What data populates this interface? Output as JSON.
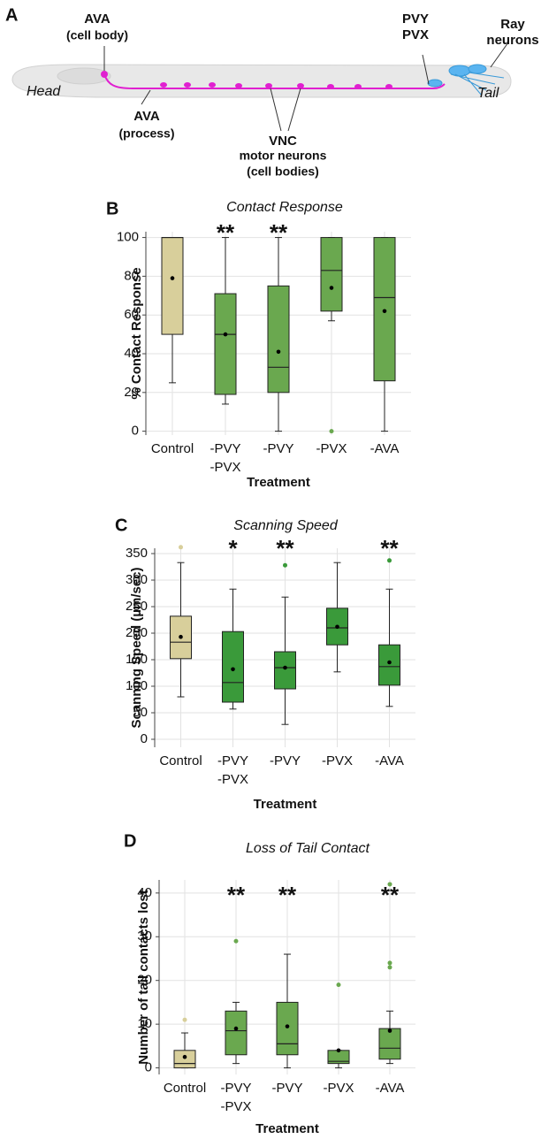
{
  "panel_a": {
    "letter": "A",
    "ava_cell_body": [
      "AVA",
      "(cell body)"
    ],
    "head": "Head",
    "ava_process": [
      "AVA",
      "(process)"
    ],
    "vnc": [
      "VNC",
      "motor neurons",
      "(cell bodies)"
    ],
    "pvy_pvx": [
      "PVY",
      "PVX"
    ],
    "ray": [
      "Ray",
      "neurons"
    ],
    "tail": "Tail"
  },
  "chart_data": [
    {
      "type": "box",
      "letter": "B",
      "title": "Contact Response",
      "xlabel": "Treatment",
      "ylabel": "% Contact Response",
      "categories": [
        [
          "Control"
        ],
        [
          "-PVY",
          "-PVX"
        ],
        [
          "-PVY"
        ],
        [
          "-PVX"
        ],
        [
          "-AVA"
        ]
      ],
      "ylim": [
        -2,
        103
      ],
      "yticks": [
        0,
        20,
        40,
        60,
        80,
        100
      ],
      "grid": true,
      "boxes": [
        {
          "color": "#d8cf9b",
          "min": 25,
          "q1": 50,
          "median": 100,
          "q3": 100,
          "max": 100,
          "mean": 79,
          "outliers": []
        },
        {
          "color": "#6aa84f",
          "min": 14,
          "q1": 19,
          "median": 50,
          "q3": 71,
          "max": 100,
          "mean": 50,
          "outliers": [],
          "significance": "**"
        },
        {
          "color": "#6aa84f",
          "min": 0,
          "q1": 20,
          "median": 33,
          "q3": 75,
          "max": 100,
          "mean": 41,
          "outliers": [],
          "significance": "**"
        },
        {
          "color": "#6aa84f",
          "min": 57,
          "q1": 62,
          "median": 83,
          "q3": 100,
          "max": 100,
          "mean": 74,
          "outliers": [
            0
          ]
        },
        {
          "color": "#6aa84f",
          "min": 0,
          "q1": 26,
          "median": 69,
          "q3": 100,
          "max": 100,
          "mean": 62,
          "outliers": []
        }
      ]
    },
    {
      "type": "box",
      "letter": "C",
      "title": "Scanning Speed",
      "xlabel": "Treatment",
      "ylabel": "Scanning Speed (µm/sec)",
      "categories": [
        [
          "Control"
        ],
        [
          "-PVY",
          "-PVX"
        ],
        [
          "-PVY"
        ],
        [
          "-PVX"
        ],
        [
          "-AVA"
        ]
      ],
      "ylim": [
        -15,
        360
      ],
      "yticks": [
        0,
        50,
        100,
        150,
        200,
        250,
        300,
        350
      ],
      "grid": true,
      "boxes": [
        {
          "color": "#d8cf9b",
          "min": 80,
          "q1": 152,
          "median": 183,
          "q3": 232,
          "max": 333,
          "mean": 193,
          "outliers": [
            362
          ]
        },
        {
          "color": "#3a9a3a",
          "min": 57,
          "q1": 70,
          "median": 107,
          "q3": 203,
          "max": 283,
          "mean": 132,
          "outliers": [],
          "significance": "*"
        },
        {
          "color": "#3a9a3a",
          "min": 28,
          "q1": 95,
          "median": 135,
          "q3": 165,
          "max": 268,
          "mean": 135,
          "outliers": [
            328
          ],
          "significance": "**"
        },
        {
          "color": "#3a9a3a",
          "min": 127,
          "q1": 178,
          "median": 210,
          "q3": 247,
          "max": 333,
          "mean": 212,
          "outliers": []
        },
        {
          "color": "#3a9a3a",
          "min": 62,
          "q1": 102,
          "median": 137,
          "q3": 178,
          "max": 283,
          "mean": 145,
          "outliers": [
            337
          ],
          "significance": "**"
        }
      ]
    },
    {
      "type": "box",
      "letter": "D",
      "title": "Loss of Tail Contact",
      "xlabel": "Treatment",
      "ylabel": "Number of tail contacts lost",
      "categories": [
        [
          "Control"
        ],
        [
          "-PVY",
          "-PVX"
        ],
        [
          "-PVY"
        ],
        [
          "-PVX"
        ],
        [
          "-AVA"
        ]
      ],
      "ylim": [
        -1.5,
        43
      ],
      "yticks": [
        0,
        10,
        20,
        30,
        40
      ],
      "grid": true,
      "boxes": [
        {
          "color": "#d8cf9b",
          "min": 0,
          "q1": 0,
          "median": 1,
          "q3": 4,
          "max": 8,
          "mean": 2.5,
          "outliers": [
            11
          ]
        },
        {
          "color": "#6aa84f",
          "min": 1,
          "q1": 3,
          "median": 8.5,
          "q3": 13,
          "max": 15,
          "mean": 9,
          "outliers": [
            29
          ],
          "significance": "**"
        },
        {
          "color": "#6aa84f",
          "min": 0,
          "q1": 3,
          "median": 5.5,
          "q3": 15,
          "max": 26,
          "mean": 9.5,
          "outliers": [],
          "significance": "**"
        },
        {
          "color": "#6aa84f",
          "min": 0,
          "q1": 1,
          "median": 1.5,
          "q3": 4,
          "max": 4,
          "mean": 4,
          "outliers": [
            19
          ]
        },
        {
          "color": "#6aa84f",
          "min": 1,
          "q1": 2,
          "median": 4.5,
          "q3": 9,
          "max": 13,
          "mean": 8.5,
          "outliers": [
            23,
            24,
            42
          ],
          "significance": "**"
        }
      ]
    }
  ]
}
